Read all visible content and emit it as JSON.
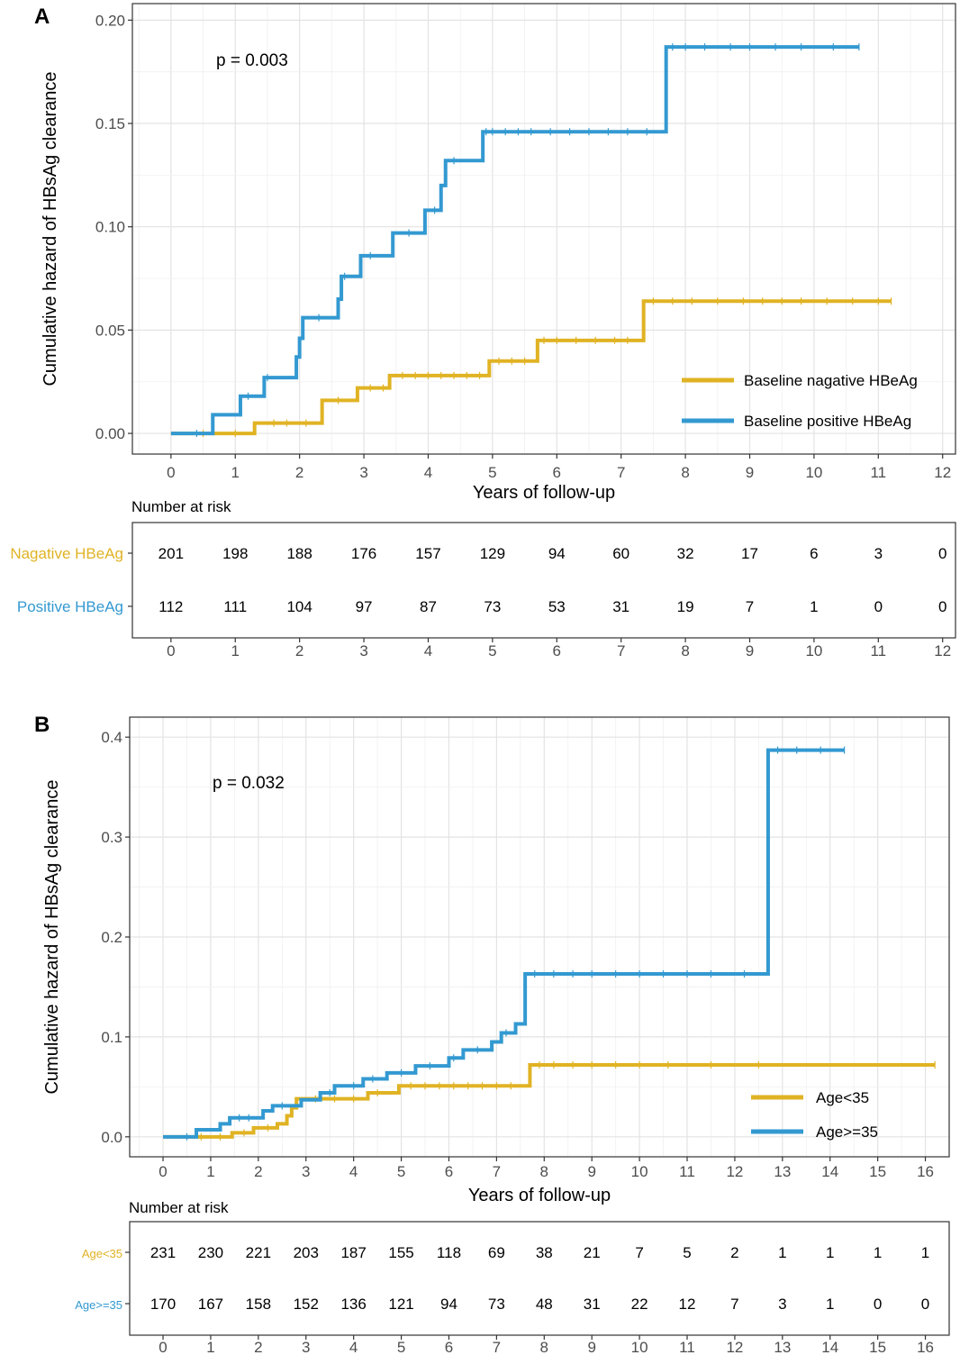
{
  "chart_data": [
    {
      "type": "line",
      "panel": "A",
      "step": true,
      "ylabel": "Cumulative hazard of HBsAg clearance",
      "xlabel": "Years of follow-up",
      "xlim": [
        -0.6,
        12.2
      ],
      "ylim": [
        -0.01,
        0.208
      ],
      "xticks": [
        "0",
        "1",
        "2",
        "3",
        "4",
        "5",
        "6",
        "7",
        "8",
        "9",
        "10",
        "11",
        "12"
      ],
      "yticks": [
        "0.00",
        "0.05",
        "0.10",
        "0.15",
        "0.20"
      ],
      "ytick_values": [
        0,
        0.05,
        0.1,
        0.15,
        0.2
      ],
      "annotation": "p = 0.003",
      "legend_position": "bottom-right",
      "series": [
        {
          "name": "Baseline nagative HBeAg",
          "color": "#E0B324",
          "x": [
            0,
            1.3,
            2.35,
            2.9,
            3.4,
            4.95,
            5.7,
            7.35,
            11.2
          ],
          "y": [
            0,
            0.005,
            0.016,
            0.022,
            0.028,
            0.035,
            0.045,
            0.064,
            0.064
          ],
          "censor_x": [
            0.5,
            1.0,
            1.6,
            1.8,
            2.1,
            2.6,
            3.1,
            3.3,
            3.6,
            3.8,
            4.0,
            4.2,
            4.4,
            4.6,
            4.8,
            5.1,
            5.3,
            5.5,
            5.8,
            6.0,
            6.3,
            6.6,
            6.9,
            7.1,
            7.5,
            7.8,
            8.1,
            8.5,
            8.9,
            9.2,
            9.5,
            9.8,
            10.2,
            10.6,
            11.0,
            11.2
          ]
        },
        {
          "name": "Baseline positive HBeAg",
          "color": "#3399D1",
          "x": [
            0,
            0.65,
            1.08,
            1.45,
            1.95,
            2.0,
            2.05,
            2.6,
            2.65,
            2.95,
            3.45,
            3.95,
            4.2,
            4.27,
            4.85,
            7.7,
            10.7
          ],
          "y": [
            0,
            0.009,
            0.018,
            0.027,
            0.037,
            0.046,
            0.056,
            0.065,
            0.076,
            0.086,
            0.097,
            0.108,
            0.12,
            0.132,
            0.146,
            0.187,
            0.187
          ],
          "censor_x": [
            0.4,
            1.2,
            1.5,
            2.3,
            2.7,
            3.1,
            3.7,
            4.1,
            4.4,
            4.9,
            5.0,
            5.2,
            5.4,
            5.6,
            5.9,
            6.2,
            6.5,
            6.8,
            7.1,
            7.4,
            7.8,
            8.0,
            8.3,
            8.7,
            9.0,
            9.4,
            9.8,
            10.3,
            10.7
          ]
        }
      ],
      "risk_table": {
        "title": "Number at risk",
        "time_points": [
          "0",
          "1",
          "2",
          "3",
          "4",
          "5",
          "6",
          "7",
          "8",
          "9",
          "10",
          "11",
          "12"
        ],
        "rows": [
          {
            "label": "Nagative HBeAg",
            "color": "#E0B324",
            "values": [
              "201",
              "198",
              "188",
              "176",
              "157",
              "129",
              "94",
              "60",
              "32",
              "17",
              "6",
              "3",
              "0"
            ]
          },
          {
            "label": "Positive HBeAg",
            "color": "#3399D1",
            "values": [
              "112",
              "111",
              "104",
              "97",
              "87",
              "73",
              "53",
              "31",
              "19",
              "7",
              "1",
              "0",
              "0"
            ]
          }
        ]
      }
    },
    {
      "type": "line",
      "panel": "B",
      "step": true,
      "ylabel": "Cumulative hazard of HBsAg clearance",
      "xlabel": "Years of follow-up",
      "xlim": [
        -0.7,
        16.5
      ],
      "ylim": [
        -0.02,
        0.42
      ],
      "xticks": [
        "0",
        "1",
        "2",
        "3",
        "4",
        "5",
        "6",
        "7",
        "8",
        "9",
        "10",
        "11",
        "12",
        "13",
        "14",
        "15",
        "16"
      ],
      "yticks": [
        "0.0",
        "0.1",
        "0.2",
        "0.3",
        "0.4"
      ],
      "ytick_values": [
        0,
        0.1,
        0.2,
        0.3,
        0.4
      ],
      "annotation": "p = 0.032",
      "legend_position": "bottom-right",
      "series": [
        {
          "name": "Age<35",
          "color": "#E0B324",
          "x": [
            0,
            1.45,
            1.9,
            2.4,
            2.6,
            2.7,
            2.8,
            4.3,
            4.95,
            7.7,
            16.2
          ],
          "y": [
            0,
            0.004,
            0.009,
            0.013,
            0.021,
            0.029,
            0.038,
            0.044,
            0.051,
            0.072,
            0.072
          ],
          "censor_x": [
            0.8,
            1.2,
            1.7,
            2.2,
            3.2,
            3.6,
            4.0,
            4.5,
            5.2,
            5.5,
            5.8,
            6.1,
            6.4,
            6.7,
            7.0,
            7.3,
            7.9,
            8.2,
            8.6,
            9.0,
            9.5,
            10.0,
            10.6,
            11.5,
            12.5,
            16.2
          ]
        },
        {
          "name": "Age>=35",
          "color": "#3399D1",
          "x": [
            0,
            0.7,
            1.2,
            1.4,
            2.1,
            2.3,
            2.9,
            3.3,
            3.6,
            4.2,
            4.7,
            5.3,
            6.0,
            6.3,
            6.9,
            7.1,
            7.4,
            7.6,
            12.7,
            14.3
          ],
          "y": [
            0,
            0.007,
            0.013,
            0.019,
            0.026,
            0.031,
            0.037,
            0.044,
            0.051,
            0.058,
            0.064,
            0.071,
            0.079,
            0.087,
            0.095,
            0.104,
            0.113,
            0.163,
            0.387,
            0.387
          ],
          "censor_x": [
            0.5,
            1.6,
            1.8,
            2.5,
            3.5,
            4.0,
            4.4,
            5.0,
            5.6,
            6.1,
            6.6,
            7.2,
            7.8,
            8.2,
            8.6,
            9.0,
            9.5,
            10.0,
            10.5,
            11.0,
            11.5,
            12.2,
            12.9,
            13.3,
            13.8,
            14.3
          ]
        }
      ],
      "risk_table": {
        "title": "Number at risk",
        "time_points": [
          "0",
          "1",
          "2",
          "3",
          "4",
          "5",
          "6",
          "7",
          "8",
          "9",
          "10",
          "11",
          "12",
          "13",
          "14",
          "15",
          "16"
        ],
        "rows": [
          {
            "label": "Age<35",
            "color": "#E0B324",
            "values": [
              "231",
              "230",
              "221",
              "203",
              "187",
              "155",
              "118",
              "69",
              "38",
              "21",
              "7",
              "5",
              "2",
              "1",
              "1",
              "1",
              "1"
            ]
          },
          {
            "label": "Age>=35",
            "color": "#3399D1",
            "values": [
              "170",
              "167",
              "158",
              "152",
              "136",
              "121",
              "94",
              "73",
              "48",
              "31",
              "22",
              "12",
              "7",
              "3",
              "1",
              "0",
              "0"
            ]
          }
        ]
      }
    }
  ]
}
